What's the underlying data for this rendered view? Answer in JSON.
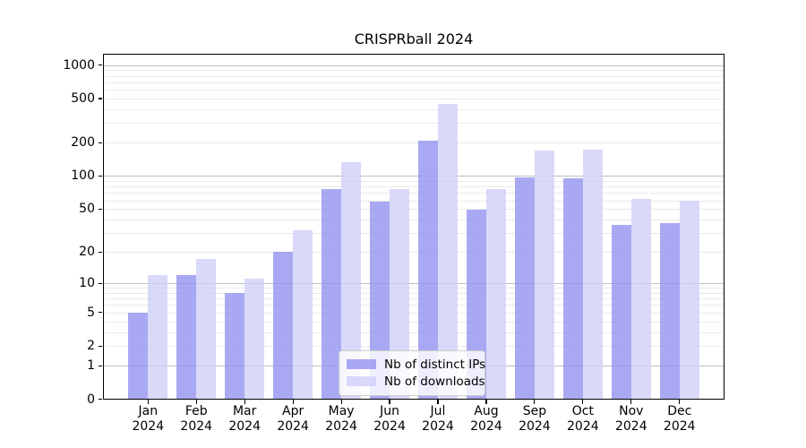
{
  "title": "CRISPRball 2024",
  "chart_data": {
    "type": "bar",
    "title": "CRISPRball 2024",
    "x_tick_months": [
      "Jan",
      "Feb",
      "Mar",
      "Apr",
      "May",
      "Jun",
      "Jul",
      "Aug",
      "Sep",
      "Oct",
      "Nov",
      "Dec"
    ],
    "x_tick_year": "2024",
    "series": [
      {
        "name": "Nb of distinct IPs",
        "color": "rgba(147,147,240,0.8)",
        "values": [
          5,
          12,
          8,
          20,
          76,
          58,
          210,
          49,
          97,
          95,
          36,
          37
        ]
      },
      {
        "name": "Nb of downloads",
        "color": "rgba(208,208,249,0.8)",
        "values": [
          12,
          17,
          11,
          32,
          133,
          76,
          450,
          76,
          170,
          174,
          62,
          59
        ]
      }
    ],
    "yscale": "log1p",
    "y_ticks": [
      0,
      1,
      2,
      5,
      10,
      20,
      50,
      100,
      200,
      500,
      1000
    ],
    "ylim": [
      0,
      1250
    ],
    "grid": {
      "on": true,
      "major_color": "#c0c0c0",
      "minor_color": "#eaeaea"
    },
    "legend": {
      "position": "lower-center"
    }
  }
}
